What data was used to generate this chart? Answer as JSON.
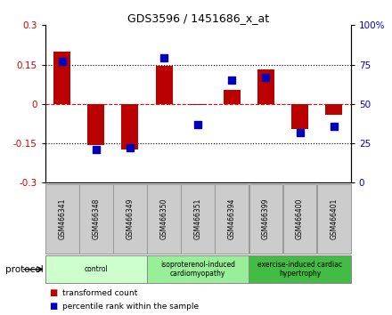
{
  "title": "GDS3596 / 1451686_x_at",
  "samples": [
    "GSM466341",
    "GSM466348",
    "GSM466349",
    "GSM466350",
    "GSM466351",
    "GSM466394",
    "GSM466399",
    "GSM466400",
    "GSM466401"
  ],
  "bar_values": [
    0.2,
    -0.155,
    -0.175,
    0.145,
    -0.005,
    0.055,
    0.13,
    -0.095,
    -0.04
  ],
  "dot_values": [
    77,
    21,
    22,
    79,
    37,
    65,
    67,
    32,
    36
  ],
  "bar_color": "#bb0000",
  "dot_color": "#0000bb",
  "ylim_left": [
    -0.3,
    0.3
  ],
  "ylim_right": [
    0,
    100
  ],
  "yticks_left": [
    -0.3,
    -0.15,
    0.0,
    0.15,
    0.3
  ],
  "yticks_right": [
    0,
    25,
    50,
    75,
    100
  ],
  "hlines": [
    -0.15,
    0.0,
    0.15
  ],
  "hline_styles": [
    "dotted",
    "dashed",
    "dotted"
  ],
  "hline_colors": [
    "black",
    "red",
    "black"
  ],
  "groups": [
    {
      "label": "control",
      "start": 0,
      "end": 3,
      "color": "#ccffcc"
    },
    {
      "label": "isoproterenol-induced\ncardiomyopathy",
      "start": 3,
      "end": 6,
      "color": "#99ee99"
    },
    {
      "label": "exercise-induced cardiac\nhypertrophy",
      "start": 6,
      "end": 9,
      "color": "#44bb44"
    }
  ],
  "protocol_label": "protocol",
  "legend_bar": "transformed count",
  "legend_dot": "percentile rank within the sample",
  "tick_color_left": "#cc0000",
  "tick_color_right": "#0000cc",
  "bar_width": 0.5,
  "dot_size": 28,
  "xlabel_bg": "#cccccc",
  "plot_bg": "#ffffff"
}
